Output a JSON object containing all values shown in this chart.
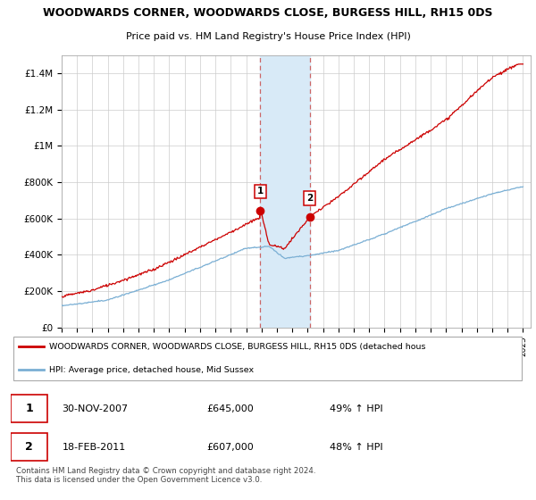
{
  "title": "WOODWARDS CORNER, WOODWARDS CLOSE, BURGESS HILL, RH15 0DS",
  "subtitle": "Price paid vs. HM Land Registry's House Price Index (HPI)",
  "ylim": [
    0,
    1500000
  ],
  "yticks": [
    0,
    200000,
    400000,
    600000,
    800000,
    1000000,
    1200000,
    1400000
  ],
  "ytick_labels": [
    "£0",
    "£200K",
    "£400K",
    "£600K",
    "£800K",
    "£1M",
    "£1.2M",
    "£1.4M"
  ],
  "xstart_year": 1995,
  "xend_year": 2025,
  "sale1_date": 2007.92,
  "sale1_price": 645000,
  "sale1_label": "1",
  "sale2_date": 2011.13,
  "sale2_price": 607000,
  "sale2_label": "2",
  "red_line_color": "#cc0000",
  "blue_line_color": "#7aafd4",
  "shade_color": "#d8eaf7",
  "legend_red_label": "WOODWARDS CORNER, WOODWARDS CLOSE, BURGESS HILL, RH15 0DS (detached hous",
  "legend_blue_label": "HPI: Average price, detached house, Mid Sussex",
  "note1_date": "30-NOV-2007",
  "note1_price": "£645,000",
  "note1_hpi": "49% ↑ HPI",
  "note2_date": "18-FEB-2011",
  "note2_price": "£607,000",
  "note2_hpi": "48% ↑ HPI",
  "footer": "Contains HM Land Registry data © Crown copyright and database right 2024.\nThis data is licensed under the Open Government Licence v3.0.",
  "background_color": "#ffffff",
  "grid_color": "#cccccc"
}
